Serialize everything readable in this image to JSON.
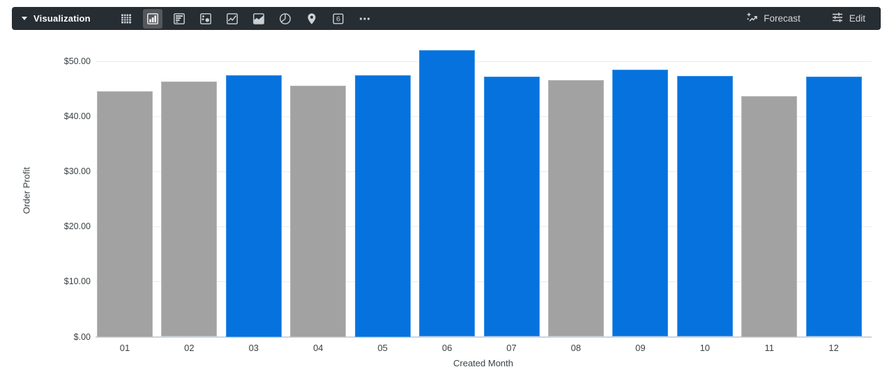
{
  "toolbar": {
    "visualization_label": "Visualization",
    "forecast_label": "Forecast",
    "edit_label": "Edit",
    "single_value_glyph": "6",
    "selected_icon": "column-chart",
    "colors": {
      "background": "#262d33",
      "selected_bg": "#54585d",
      "icon": "#ced2d4"
    }
  },
  "chart_data": {
    "type": "bar",
    "title": "",
    "xlabel": "Created Month",
    "ylabel": "Order Profit",
    "categories": [
      "01",
      "02",
      "03",
      "04",
      "05",
      "06",
      "07",
      "08",
      "09",
      "10",
      "11",
      "12"
    ],
    "values": [
      44.6,
      46.35,
      47.5,
      45.55,
      47.5,
      52.0,
      47.2,
      46.6,
      48.5,
      47.3,
      43.65,
      47.2
    ],
    "bar_colors": [
      "gray",
      "gray",
      "blue",
      "gray",
      "blue",
      "blue",
      "blue",
      "gray",
      "blue",
      "blue",
      "gray",
      "blue"
    ],
    "palette": {
      "blue": "#0572de",
      "gray": "#a2a2a2"
    },
    "y_ticks": [
      {
        "value": 0,
        "label": "$.00"
      },
      {
        "value": 10,
        "label": "$10.00"
      },
      {
        "value": 20,
        "label": "$20.00"
      },
      {
        "value": 30,
        "label": "$30.00"
      },
      {
        "value": 40,
        "label": "$40.00"
      },
      {
        "value": 50,
        "label": "$50.00"
      }
    ],
    "ylim": [
      0,
      55
    ],
    "grid": true,
    "legend": false
  }
}
